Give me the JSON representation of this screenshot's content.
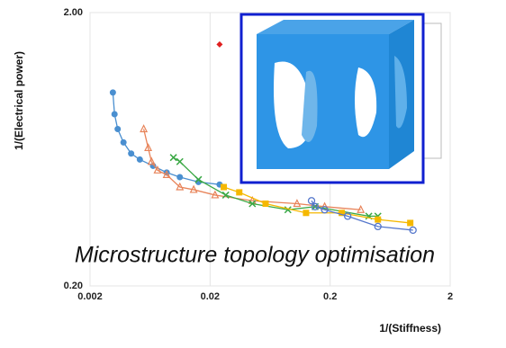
{
  "chart_data": {
    "type": "line",
    "xlabel": "1/(Stiffness)",
    "ylabel": "1/(Electrical power)",
    "annotation": "Microstructure topology optimisation",
    "xlog": true,
    "ylog": true,
    "grid": true,
    "xlim": [
      0.002,
      2
    ],
    "ylim": [
      0.2,
      2
    ],
    "xticks": [
      0.002,
      0.02,
      0.2,
      2
    ],
    "yticks": [
      {
        "value": 0.2,
        "label": "0.20"
      },
      {
        "value": 2,
        "label": "2.00"
      }
    ],
    "series": [
      {
        "color": "#4a8fd0",
        "marker": "circle",
        "line": true,
        "x": [
          0.0031,
          0.0032,
          0.0034,
          0.0038,
          0.0044,
          0.0052,
          0.0067,
          0.0087,
          0.0112,
          0.016,
          0.024
        ],
        "values": [
          1.02,
          0.85,
          0.75,
          0.67,
          0.61,
          0.58,
          0.55,
          0.52,
          0.5,
          0.48,
          0.47
        ]
      },
      {
        "color": "#e8845a",
        "marker": "triangle",
        "line": true,
        "x": [
          0.0056,
          0.0061,
          0.0065,
          0.0073,
          0.0087,
          0.0112,
          0.0146,
          0.022,
          0.045,
          0.106,
          0.18,
          0.36
        ],
        "values": [
          0.75,
          0.64,
          0.57,
          0.53,
          0.51,
          0.46,
          0.45,
          0.43,
          0.41,
          0.4,
          0.39,
          0.38
        ]
      },
      {
        "color": "#3aa844",
        "marker": "x",
        "line": true,
        "x": [
          0.0099,
          0.0112,
          0.016,
          0.027,
          0.045,
          0.089,
          0.15,
          0.42,
          0.5
        ],
        "values": [
          0.59,
          0.57,
          0.49,
          0.43,
          0.4,
          0.38,
          0.39,
          0.36,
          0.36
        ]
      },
      {
        "color": "#f5b800",
        "marker": "square",
        "line": true,
        "x": [
          0.026,
          0.035,
          0.058,
          0.126,
          0.25,
          0.5,
          0.93
        ],
        "values": [
          0.46,
          0.44,
          0.4,
          0.37,
          0.37,
          0.35,
          0.34
        ]
      },
      {
        "color": "#5577cc",
        "marker": "circle-open",
        "line": true,
        "x": [
          0.14,
          0.15,
          0.18,
          0.28,
          0.5,
          0.98
        ],
        "values": [
          0.41,
          0.39,
          0.38,
          0.36,
          0.33,
          0.32
        ]
      },
      {
        "color": "#e02020",
        "marker": "diamond",
        "line": false,
        "x": [
          0.024
        ],
        "values": [
          1.53
        ]
      }
    ]
  }
}
